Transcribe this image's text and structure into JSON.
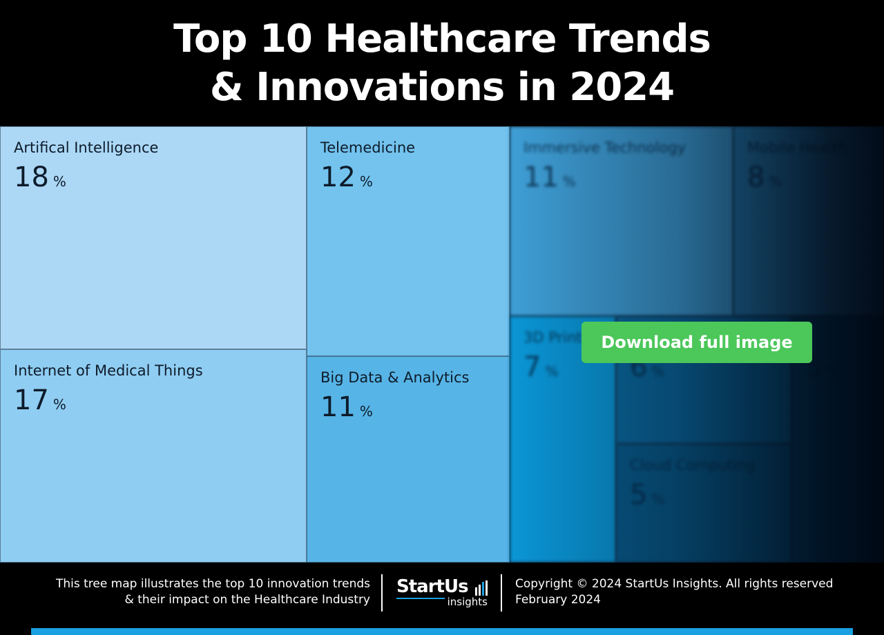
{
  "title_lines": [
    "Top 10 Healthcare Trends",
    "& Innovations in 2024"
  ],
  "colors": {
    "background": "#000000",
    "button": "#4cc75a",
    "accent": "#1aa0e0"
  },
  "chart_data": {
    "type": "treemap",
    "title": "Top 10 Healthcare Trends & Innovations in 2024",
    "unit": "%",
    "items": [
      {
        "label": "Artifical Intelligence",
        "value": 18,
        "color": "#acd8f6"
      },
      {
        "label": "Internet of Medical Things",
        "value": 17,
        "color": "#90cdf2"
      },
      {
        "label": "Telemedicine",
        "value": 12,
        "color": "#73c3ee"
      },
      {
        "label": "Big Data & Analytics",
        "value": 11,
        "color": "#57b4e6"
      },
      {
        "label": "Immersive Technology",
        "value": 11,
        "color": "#3f9fd6"
      },
      {
        "label": "Mobile Health",
        "value": 8,
        "color": "#2a86bd"
      },
      {
        "label": "3D Printing",
        "value": 7,
        "color": "#0a96d6"
      },
      {
        "label": "",
        "value": 6,
        "color": "#0a6aa0"
      },
      {
        "label": "Cloud Computing",
        "value": 5,
        "color": "#085c8c"
      },
      {
        "label": "",
        "value": 5,
        "color": "#064d78"
      }
    ],
    "visible_items": 4
  },
  "download_label": "Download full image",
  "footer": {
    "description_lines": [
      "This tree map illustrates the top 10 innovation trends",
      "& their impact on the Healthcare Industry"
    ],
    "logo_main": "StartUs",
    "logo_sub": "insights",
    "copyright": "Copyright © 2024 StartUs Insights. All rights reserved",
    "date": "February 2024"
  }
}
